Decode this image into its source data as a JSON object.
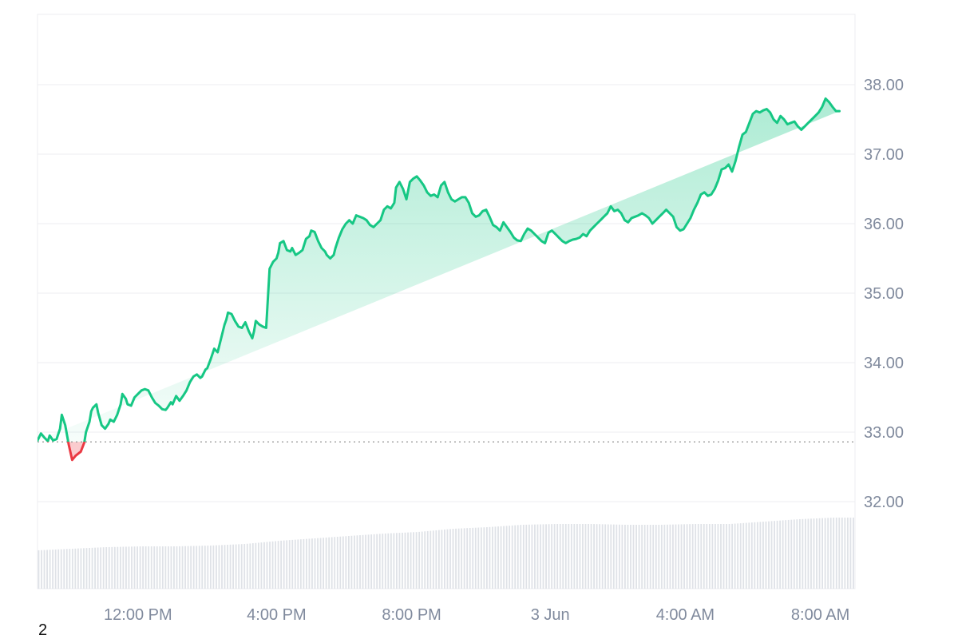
{
  "footnote": "2",
  "colors": {
    "up": "#16c784",
    "down": "#ea3943",
    "grid": "#eceef1",
    "axis_text": "#808a9d",
    "volume": "#dfe2e7"
  },
  "chart_data": {
    "type": "area",
    "ylim": [
      31.0,
      39.0
    ],
    "yticks": [
      "38.00",
      "37.00",
      "36.00",
      "35.00",
      "34.00",
      "33.00",
      "32.00"
    ],
    "ytick_values": [
      38,
      37,
      36,
      35,
      34,
      33,
      32
    ],
    "baseline": 32.86,
    "grid": true,
    "xtick_labels": [
      "12:00 PM",
      "4:00 PM",
      "8:00 PM",
      "3 Jun",
      "4:00 AM",
      "8:00 AM"
    ],
    "xtick_hours": [
      2.9,
      6.9,
      10.8,
      14.8,
      18.7,
      22.6
    ],
    "x_range_hours": [
      0,
      23.6
    ],
    "price_series": {
      "hours": [
        0.0,
        0.1,
        0.2,
        0.3,
        0.35,
        0.45,
        0.55,
        0.65,
        0.7,
        0.8,
        0.9,
        1.0,
        1.1,
        1.2,
        1.25,
        1.35,
        1.4,
        1.5,
        1.55,
        1.6,
        1.7,
        1.75,
        1.85,
        1.95,
        2.05,
        2.1,
        2.2,
        2.3,
        2.4,
        2.45,
        2.55,
        2.6,
        2.7,
        2.8,
        2.9,
        3.0,
        3.1,
        3.2,
        3.3,
        3.4,
        3.5,
        3.6,
        3.7,
        3.75,
        3.85,
        3.9,
        4.0,
        4.1,
        4.2,
        4.3,
        4.4,
        4.5,
        4.6,
        4.7,
        4.75,
        4.85,
        4.9,
        5.0,
        5.1,
        5.2,
        5.3,
        5.4,
        5.45,
        5.5,
        5.6,
        5.7,
        5.8,
        5.9,
        6.0,
        6.1,
        6.2,
        6.25,
        6.3,
        6.4,
        6.5,
        6.6,
        6.7,
        6.8,
        6.9,
        6.95,
        7.0,
        7.1,
        7.2,
        7.3,
        7.35,
        7.45,
        7.55,
        7.65,
        7.75,
        7.85,
        7.9,
        8.0,
        8.1,
        8.2,
        8.3,
        8.35,
        8.45,
        8.55,
        8.6,
        8.7,
        8.8,
        8.9,
        9.0,
        9.1,
        9.2,
        9.3,
        9.4,
        9.5,
        9.6,
        9.7,
        9.8,
        9.9,
        10.0,
        10.1,
        10.2,
        10.3,
        10.35,
        10.45,
        10.55,
        10.65,
        10.75,
        10.85,
        10.95,
        11.05,
        11.15,
        11.25,
        11.35,
        11.45,
        11.55,
        11.65,
        11.75,
        11.85,
        11.95,
        12.05,
        12.15,
        12.25,
        12.35,
        12.45,
        12.55,
        12.65,
        12.75,
        12.85,
        12.95,
        13.05,
        13.15,
        13.25,
        13.35,
        13.45,
        13.55,
        13.65,
        13.75,
        13.85,
        13.95,
        14.05,
        14.15,
        14.25,
        14.35,
        14.45,
        14.55,
        14.65,
        14.75,
        14.85,
        14.95,
        15.05,
        15.15,
        15.25,
        15.35,
        15.45,
        15.55,
        15.65,
        15.75,
        15.85,
        15.95,
        16.05,
        16.15,
        16.25,
        16.35,
        16.45,
        16.55,
        16.65,
        16.75,
        16.85,
        16.95,
        17.05,
        17.15,
        17.25,
        17.35,
        17.45,
        17.55,
        17.65,
        17.75,
        17.85,
        17.95,
        18.05,
        18.15,
        18.25,
        18.35,
        18.45,
        18.55,
        18.65,
        18.75,
        18.85,
        18.95,
        19.05,
        19.15,
        19.25,
        19.35,
        19.45,
        19.55,
        19.65,
        19.75,
        19.85,
        19.95,
        20.05,
        20.15,
        20.25,
        20.35,
        20.45,
        20.55,
        20.65,
        20.75,
        20.85,
        20.95,
        21.05,
        21.15,
        21.25,
        21.35,
        21.45,
        21.55,
        21.65,
        21.75,
        21.85,
        21.95,
        22.05,
        22.15,
        22.25,
        22.35,
        22.45,
        22.55,
        22.65,
        22.75,
        22.85,
        22.95,
        23.05,
        23.15,
        23.25,
        23.35,
        23.45,
        23.55,
        23.6
      ],
      "prices": [
        32.88,
        32.98,
        32.92,
        32.87,
        32.95,
        32.88,
        32.9,
        33.05,
        33.25,
        33.1,
        32.82,
        32.6,
        32.66,
        32.7,
        32.72,
        32.85,
        33.0,
        33.15,
        33.3,
        33.35,
        33.4,
        33.28,
        33.1,
        33.05,
        33.12,
        33.18,
        33.15,
        33.25,
        33.4,
        33.55,
        33.48,
        33.4,
        33.38,
        33.5,
        33.55,
        33.6,
        33.62,
        33.6,
        33.5,
        33.42,
        33.38,
        33.33,
        33.32,
        33.35,
        33.43,
        33.4,
        33.52,
        33.45,
        33.52,
        33.6,
        33.72,
        33.8,
        33.83,
        33.78,
        33.8,
        33.9,
        33.92,
        34.05,
        34.2,
        34.15,
        34.35,
        34.55,
        34.62,
        34.72,
        34.7,
        34.6,
        34.52,
        34.5,
        34.58,
        34.45,
        34.35,
        34.45,
        34.6,
        34.55,
        34.52,
        34.5,
        35.35,
        35.45,
        35.5,
        35.58,
        35.72,
        35.75,
        35.62,
        35.6,
        35.65,
        35.55,
        35.58,
        35.62,
        35.78,
        35.82,
        35.9,
        35.88,
        35.75,
        35.65,
        35.6,
        35.55,
        35.5,
        35.55,
        35.65,
        35.8,
        35.92,
        36.0,
        36.05,
        36.0,
        36.12,
        36.1,
        36.08,
        36.05,
        35.98,
        35.95,
        36.0,
        36.05,
        36.2,
        36.25,
        36.22,
        36.3,
        36.52,
        36.6,
        36.5,
        36.35,
        36.6,
        36.65,
        36.68,
        36.62,
        36.55,
        36.45,
        36.4,
        36.42,
        36.38,
        36.55,
        36.6,
        36.45,
        36.35,
        36.32,
        36.35,
        36.38,
        36.38,
        36.3,
        36.15,
        36.1,
        36.12,
        36.18,
        36.2,
        36.1,
        35.98,
        35.95,
        35.9,
        36.02,
        35.95,
        35.88,
        35.8,
        35.76,
        35.75,
        35.85,
        35.93,
        35.9,
        35.85,
        35.8,
        35.75,
        35.72,
        35.87,
        35.9,
        35.85,
        35.8,
        35.75,
        35.72,
        35.75,
        35.77,
        35.78,
        35.8,
        35.85,
        35.82,
        35.9,
        35.95,
        36.0,
        36.05,
        36.1,
        36.15,
        36.25,
        36.18,
        36.2,
        36.15,
        36.05,
        36.02,
        36.08,
        36.1,
        36.12,
        36.15,
        36.12,
        36.08,
        36.0,
        36.05,
        36.1,
        36.15,
        36.2,
        36.15,
        36.1,
        35.95,
        35.9,
        35.92,
        36.0,
        36.08,
        36.2,
        36.3,
        36.42,
        36.45,
        36.4,
        36.42,
        36.5,
        36.62,
        36.78,
        36.8,
        36.85,
        36.75,
        36.9,
        37.1,
        37.28,
        37.32,
        37.45,
        37.58,
        37.62,
        37.6,
        37.63,
        37.65,
        37.6,
        37.5,
        37.45,
        37.55,
        37.5,
        37.43,
        37.45,
        37.47,
        37.4,
        37.35,
        37.4,
        37.45,
        37.5,
        37.55,
        37.6,
        37.68,
        37.8,
        37.75,
        37.68,
        37.62,
        37.62
      ]
    },
    "volume_series": {
      "hours": [
        0.0,
        1.0,
        2.0,
        3.0,
        4.0,
        5.0,
        6.0,
        7.0,
        8.0,
        9.0,
        10.0,
        11.0,
        12.0,
        13.0,
        14.0,
        15.0,
        16.0,
        17.0,
        18.0,
        19.0,
        20.0,
        21.0,
        22.0,
        23.0,
        23.6
      ],
      "relative": [
        0.48,
        0.5,
        0.52,
        0.53,
        0.53,
        0.54,
        0.56,
        0.6,
        0.63,
        0.66,
        0.69,
        0.71,
        0.75,
        0.77,
        0.8,
        0.81,
        0.81,
        0.8,
        0.8,
        0.81,
        0.81,
        0.84,
        0.87,
        0.89,
        0.89
      ]
    }
  }
}
